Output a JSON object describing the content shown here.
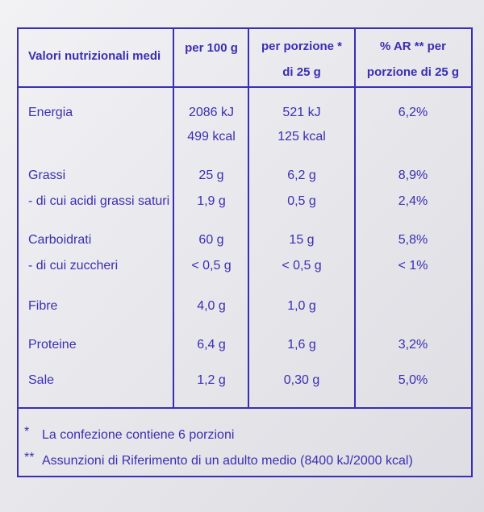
{
  "table": {
    "header": [
      [
        "Valori nutrizionali medi"
      ],
      [
        "per 100 g"
      ],
      [
        "per porzione *",
        "di 25 g"
      ],
      [
        "% AR ** per",
        "porzione di 25 g"
      ]
    ],
    "rows": [
      [
        [
          "Energia"
        ],
        [
          "2086 kJ",
          "499 kcal"
        ],
        [
          "521 kJ",
          "125 kcal"
        ],
        [
          "6,2%"
        ]
      ],
      [
        [
          "Grassi"
        ],
        [
          "25 g"
        ],
        [
          "6,2 g"
        ],
        [
          "8,9%"
        ]
      ],
      [
        [
          "- di cui acidi grassi saturi"
        ],
        [
          "1,9 g"
        ],
        [
          "0,5 g"
        ],
        [
          "2,4%"
        ]
      ],
      [
        [
          "Carboidrati"
        ],
        [
          "60 g"
        ],
        [
          "15 g"
        ],
        [
          "5,8%"
        ]
      ],
      [
        [
          "- di cui zuccheri"
        ],
        [
          "< 0,5 g"
        ],
        [
          "< 0,5 g"
        ],
        [
          "< 1%"
        ]
      ],
      [
        [
          "Fibre"
        ],
        [
          "4,0 g"
        ],
        [
          "1,0 g"
        ]
      ],
      [
        [
          "Proteine"
        ],
        [
          "6,4 g"
        ],
        [
          "1,6 g"
        ],
        [
          "3,2%"
        ]
      ],
      [
        [
          "Sale"
        ],
        [
          "1,2 g"
        ],
        [
          "0,30 g"
        ],
        [
          "5,0%"
        ]
      ]
    ]
  },
  "footnotes": [
    {
      "mark": "*",
      "text": "La confezione contiene 6 porzioni"
    },
    {
      "mark": "**",
      "text": "Assunzioni di Riferimento di un adulto medio (8400 kJ/2000 kcal)"
    }
  ]
}
